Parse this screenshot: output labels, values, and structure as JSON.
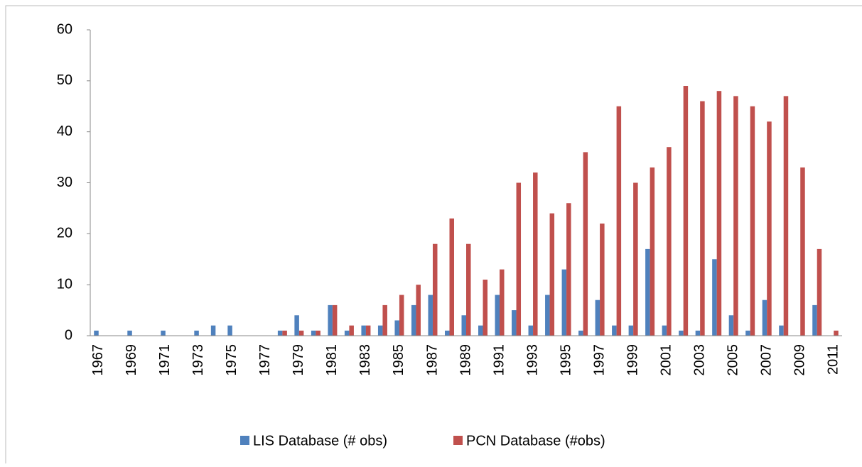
{
  "chart_data": {
    "type": "bar",
    "categories": [
      "1967",
      null,
      "1969",
      null,
      "1971",
      null,
      "1973",
      null,
      "1975",
      null,
      "1977",
      null,
      "1979",
      null,
      "1981",
      null,
      "1983",
      null,
      "1985",
      null,
      "1987",
      null,
      "1989",
      null,
      "1991",
      null,
      "1993",
      null,
      "1995",
      null,
      "1997",
      null,
      "1999",
      null,
      "2001",
      null,
      "2003",
      null,
      "2005",
      null,
      "2007",
      null,
      "2009",
      null,
      "2011"
    ],
    "series": [
      {
        "name": "LIS Database (# obs)",
        "color": "#4f81bd",
        "values": [
          1,
          0,
          1,
          0,
          1,
          0,
          1,
          2,
          2,
          0,
          0,
          1,
          4,
          1,
          6,
          1,
          2,
          2,
          3,
          6,
          8,
          1,
          4,
          2,
          8,
          5,
          2,
          8,
          13,
          1,
          7,
          2,
          2,
          17,
          2,
          1,
          1,
          15,
          4,
          1,
          7,
          2,
          0,
          6,
          0
        ]
      },
      {
        "name": "PCN Database (#obs)",
        "color": "#c0504d",
        "values": [
          0,
          0,
          0,
          0,
          0,
          0,
          0,
          0,
          0,
          0,
          0,
          1,
          1,
          1,
          6,
          2,
          2,
          6,
          8,
          10,
          18,
          23,
          18,
          11,
          13,
          30,
          32,
          24,
          26,
          36,
          22,
          45,
          30,
          33,
          37,
          49,
          46,
          48,
          47,
          45,
          42,
          47,
          33,
          17,
          1
        ]
      }
    ],
    "ylim": [
      0,
      60
    ],
    "yticks": [
      0,
      10,
      20,
      30,
      40,
      50,
      60
    ],
    "legend": "bottom"
  }
}
